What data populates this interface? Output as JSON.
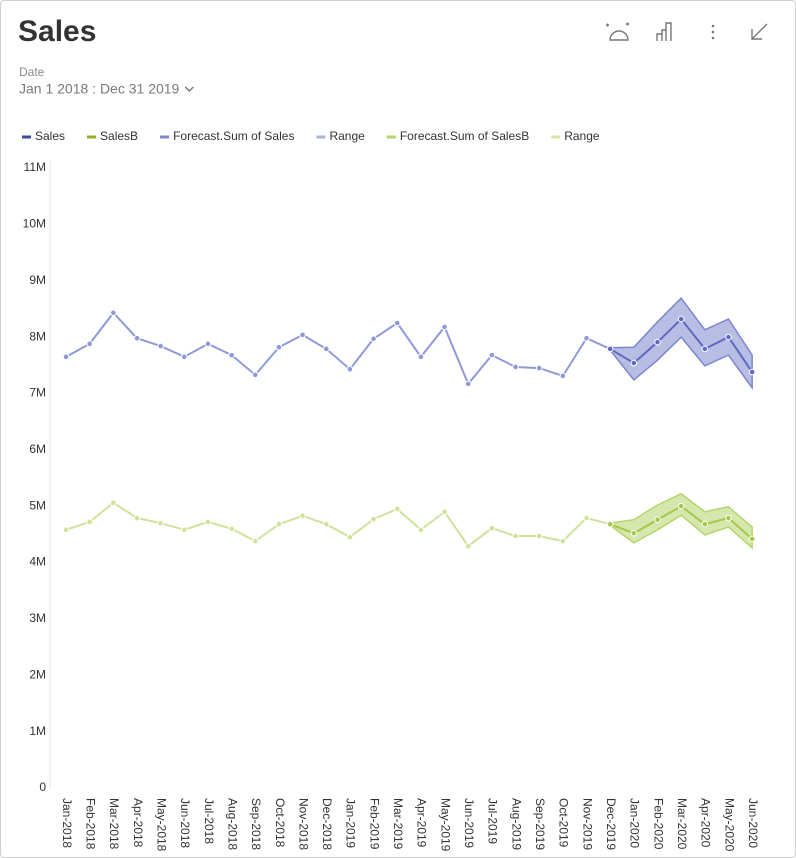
{
  "header": {
    "title": "Sales",
    "filter_label": "Date",
    "filter_value": "Jan 1 2018 : Dec 31 2019"
  },
  "chart_data": {
    "type": "line",
    "categories": [
      "Jan-2018",
      "Feb-2018",
      "Mar-2018",
      "Apr-2018",
      "May-2018",
      "Jun-2018",
      "Jul-2018",
      "Aug-2018",
      "Sep-2018",
      "Oct-2018",
      "Nov-2018",
      "Dec-2018",
      "Jan-2019",
      "Feb-2019",
      "Mar-2019",
      "Apr-2019",
      "May-2019",
      "Jun-2019",
      "Jul-2019",
      "Aug-2019",
      "Sep-2019",
      "Oct-2019",
      "Nov-2019",
      "Dec-2019",
      "Jan-2020",
      "Feb-2020",
      "Mar-2020",
      "Apr-2020",
      "May-2020",
      "Jun-2020"
    ],
    "ylim": [
      0,
      11000000
    ],
    "yticks": [
      0,
      {
        "value": 1000000,
        "label": "1M"
      },
      {
        "value": 2000000,
        "label": "2M"
      },
      {
        "value": 3000000,
        "label": "3M"
      },
      {
        "value": 4000000,
        "label": "4M"
      },
      {
        "value": 5000000,
        "label": "5M"
      },
      {
        "value": 6000000,
        "label": "6M"
      },
      {
        "value": 7000000,
        "label": "7M"
      },
      {
        "value": 8000000,
        "label": "8M"
      },
      {
        "value": 9000000,
        "label": "9M"
      },
      {
        "value": 10000000,
        "label": "10M"
      },
      {
        "value": 11000000,
        "label": "11M"
      }
    ],
    "grid": false,
    "series": [
      {
        "name": "Sales",
        "color": "#8f99d8",
        "legend_color": "#3d4aa0",
        "values": [
          7650000,
          7880000,
          8430000,
          7980000,
          7840000,
          7650000,
          7880000,
          7680000,
          7330000,
          7820000,
          8040000,
          7790000,
          7430000,
          7970000,
          8250000,
          7650000,
          8180000,
          7170000,
          7680000,
          7470000,
          7450000,
          7310000,
          7980000,
          7790000,
          null,
          null,
          null,
          null,
          null,
          null
        ]
      },
      {
        "name": "SalesB",
        "color": "#cfe29a",
        "legend_color": "#8db32c",
        "values": [
          4580000,
          4720000,
          5060000,
          4790000,
          4700000,
          4580000,
          4720000,
          4600000,
          4380000,
          4680000,
          4830000,
          4680000,
          4450000,
          4770000,
          4950000,
          4580000,
          4900000,
          4290000,
          4610000,
          4470000,
          4470000,
          4380000,
          4790000,
          4680000,
          null,
          null,
          null,
          null,
          null,
          null
        ]
      },
      {
        "name": "Forecast.Sum of Sales",
        "color": "#5d69c4",
        "legend_color": "#7b86cc",
        "values": [
          null,
          null,
          null,
          null,
          null,
          null,
          null,
          null,
          null,
          null,
          null,
          null,
          null,
          null,
          null,
          null,
          null,
          null,
          null,
          null,
          null,
          null,
          null,
          7790000,
          7540000,
          7910000,
          8320000,
          7790000,
          8000000,
          7380000
        ]
      },
      {
        "name": "Range",
        "color": "#7b86cc",
        "legend_color": "#a9b3e0",
        "high": [
          null,
          null,
          null,
          null,
          null,
          null,
          null,
          null,
          null,
          null,
          null,
          null,
          null,
          null,
          null,
          null,
          null,
          null,
          null,
          null,
          null,
          null,
          null,
          7810000,
          7820000,
          8270000,
          8690000,
          8130000,
          8320000,
          7680000
        ],
        "low": [
          null,
          null,
          null,
          null,
          null,
          null,
          null,
          null,
          null,
          null,
          null,
          null,
          null,
          null,
          null,
          null,
          null,
          null,
          null,
          null,
          null,
          null,
          null,
          7770000,
          7240000,
          7590000,
          8000000,
          7490000,
          7680000,
          7100000
        ]
      },
      {
        "name": "Forecast.Sum of SalesB",
        "color": "#a5c84a",
        "legend_color": "#b5d46a",
        "values": [
          null,
          null,
          null,
          null,
          null,
          null,
          null,
          null,
          null,
          null,
          null,
          null,
          null,
          null,
          null,
          null,
          null,
          null,
          null,
          null,
          null,
          null,
          null,
          4680000,
          4520000,
          4760000,
          5000000,
          4680000,
          4790000,
          4420000
        ]
      },
      {
        "name": "Range",
        "color": "#b5d46a",
        "legend_color": "#d5e6a0",
        "high": [
          null,
          null,
          null,
          null,
          null,
          null,
          null,
          null,
          null,
          null,
          null,
          null,
          null,
          null,
          null,
          null,
          null,
          null,
          null,
          null,
          null,
          null,
          null,
          4700000,
          4760000,
          5020000,
          5220000,
          4900000,
          4990000,
          4630000
        ],
        "low": [
          null,
          null,
          null,
          null,
          null,
          null,
          null,
          null,
          null,
          null,
          null,
          null,
          null,
          null,
          null,
          null,
          null,
          null,
          null,
          null,
          null,
          null,
          null,
          4660000,
          4350000,
          4580000,
          4840000,
          4490000,
          4630000,
          4260000
        ]
      }
    ]
  }
}
